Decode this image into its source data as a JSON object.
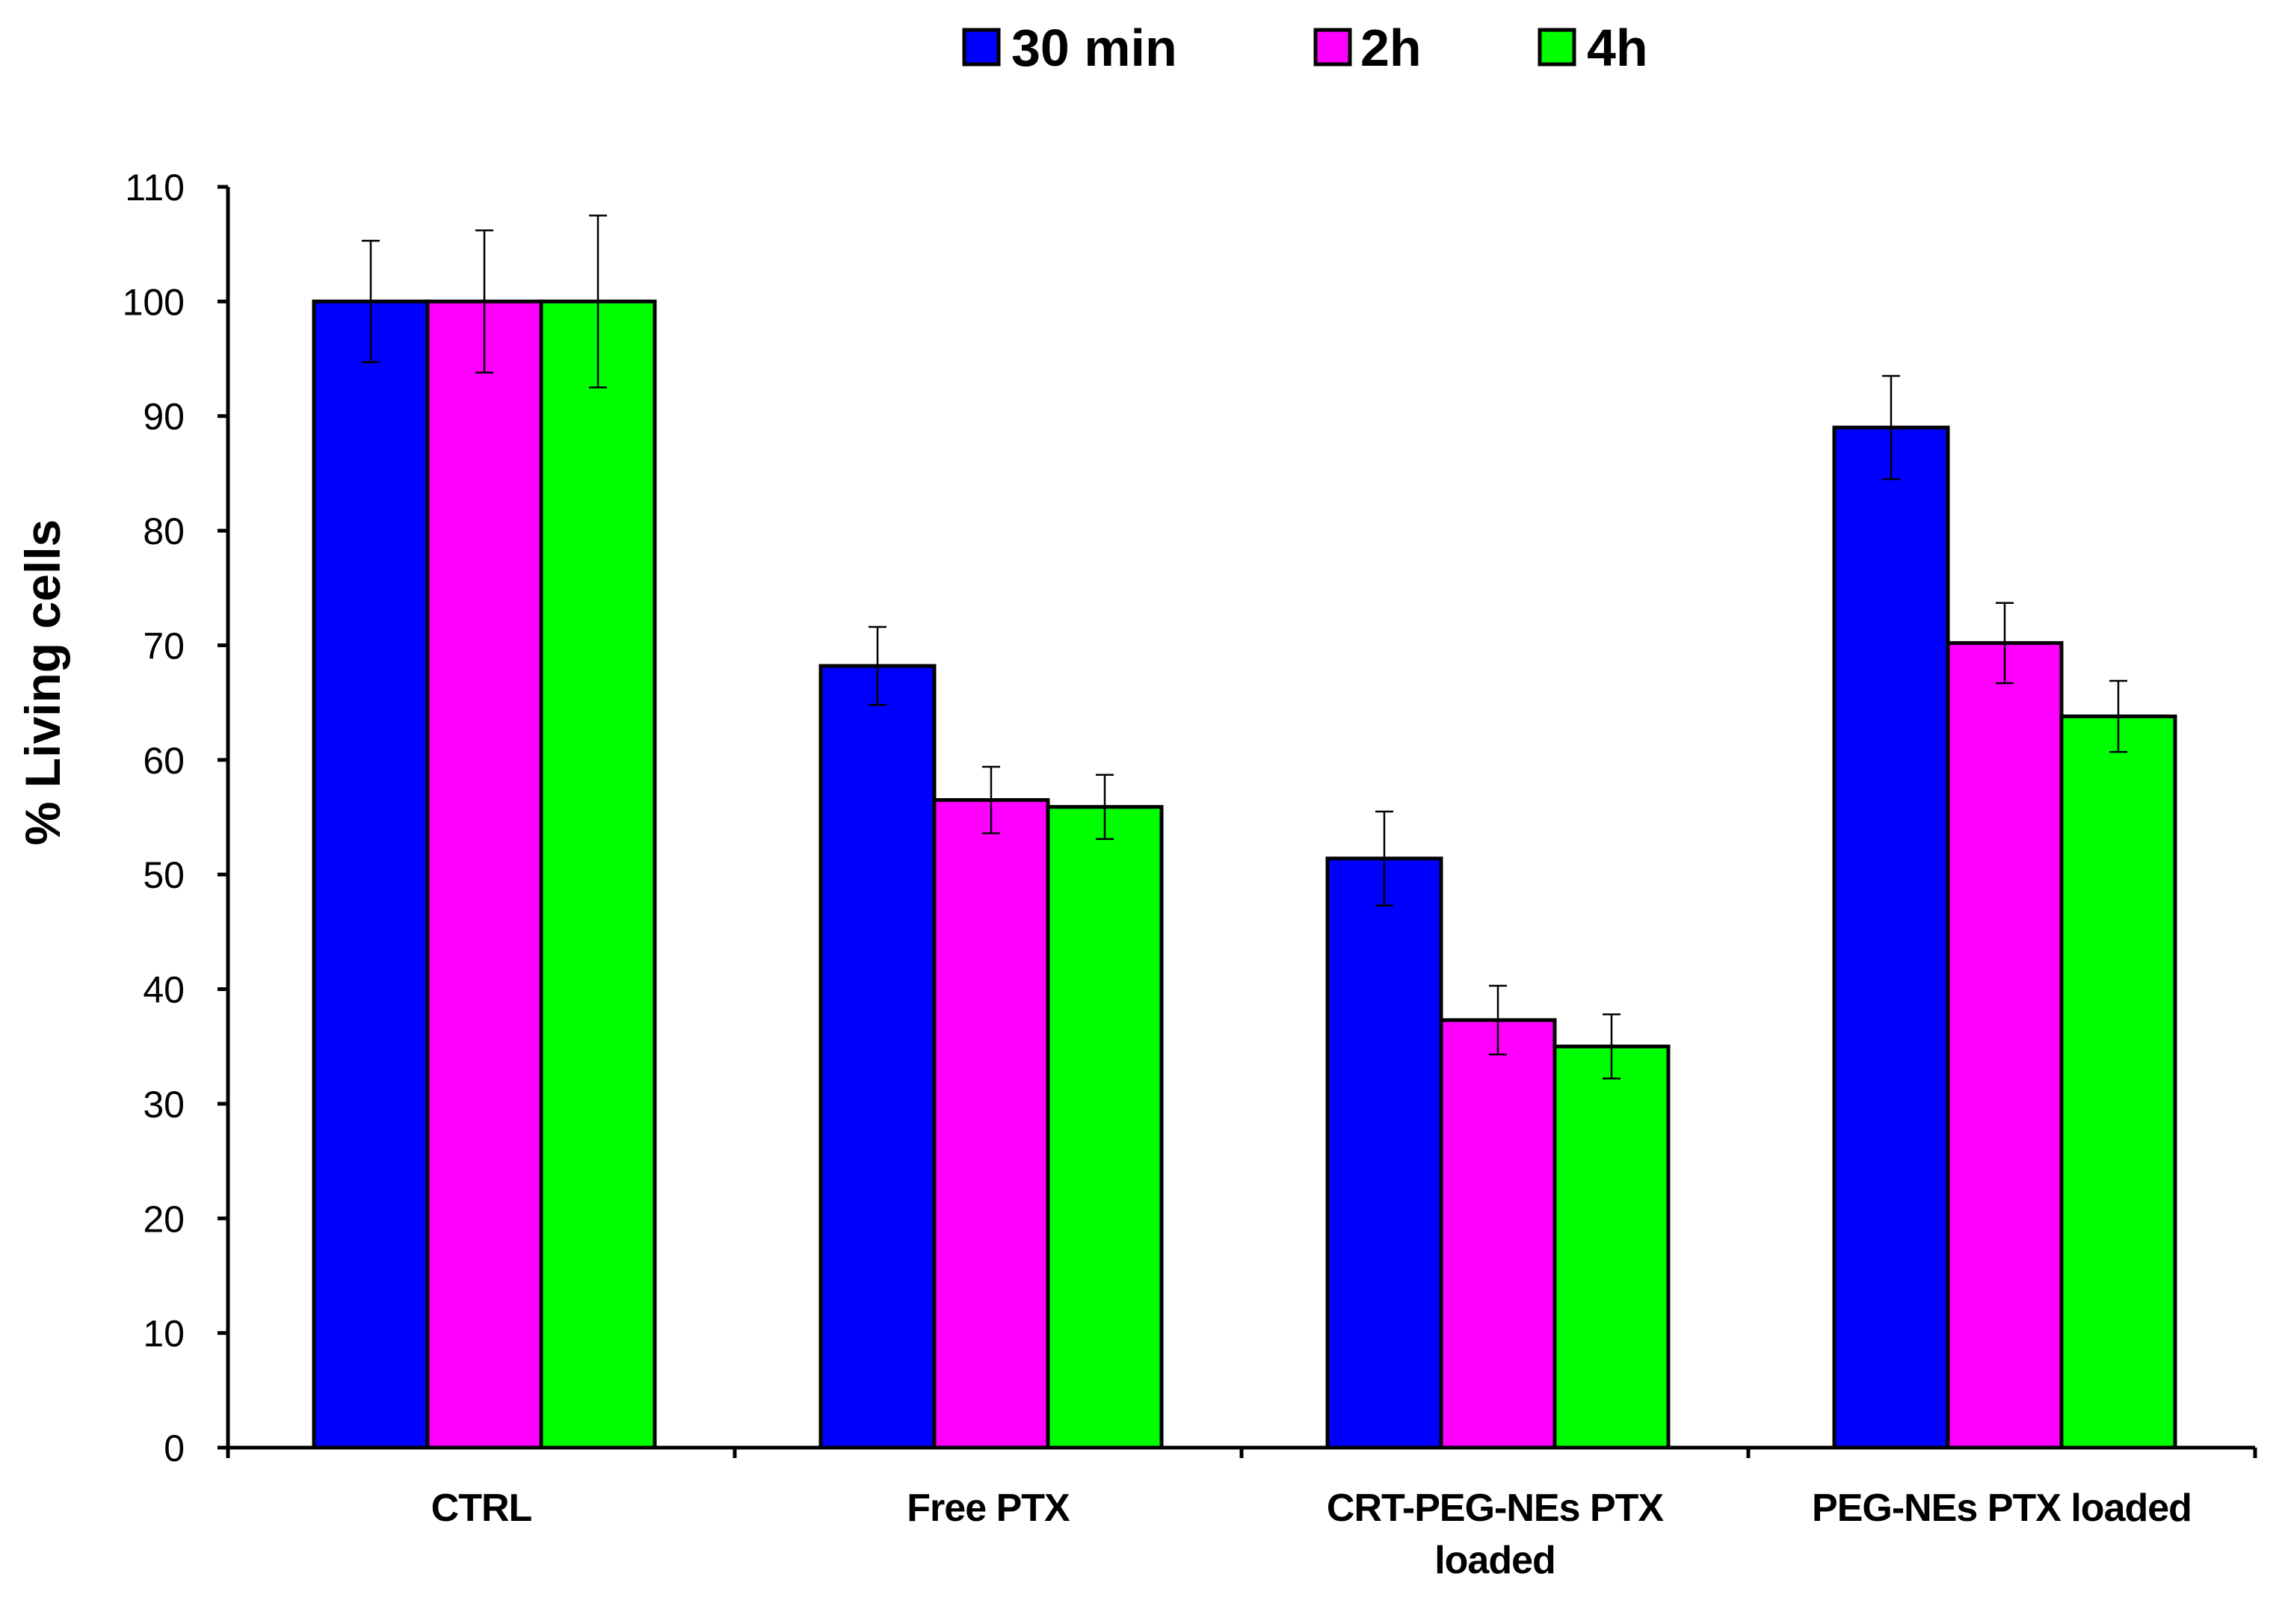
{
  "chart_data": {
    "type": "bar",
    "title": "",
    "xlabel": "",
    "ylabel": "% Living cells",
    "ylim": [
      0,
      110
    ],
    "yticks": [
      0,
      10,
      20,
      30,
      40,
      50,
      60,
      70,
      80,
      90,
      100,
      110
    ],
    "categories": [
      [
        "CTRL"
      ],
      [
        "Free PTX"
      ],
      [
        "CRT-PEG-NEs PTX",
        "loaded"
      ],
      [
        "PEG-NEs PTX loaded"
      ]
    ],
    "series": [
      {
        "name": "30 min",
        "color": "#0000FF",
        "values": [
          100,
          68.2,
          51.4,
          89.0
        ],
        "errors": [
          5.3,
          3.4,
          4.1,
          4.5
        ]
      },
      {
        "name": "2h",
        "color": "#FF00FF",
        "values": [
          100,
          56.5,
          37.3,
          70.2
        ],
        "errors": [
          6.2,
          2.9,
          3.0,
          3.5
        ]
      },
      {
        "name": "4h",
        "color": "#00FF00",
        "values": [
          100,
          55.9,
          35.0,
          63.8
        ],
        "errors": [
          7.5,
          2.8,
          2.8,
          3.1
        ]
      }
    ],
    "legend_position": "top-center",
    "grid": false
  }
}
